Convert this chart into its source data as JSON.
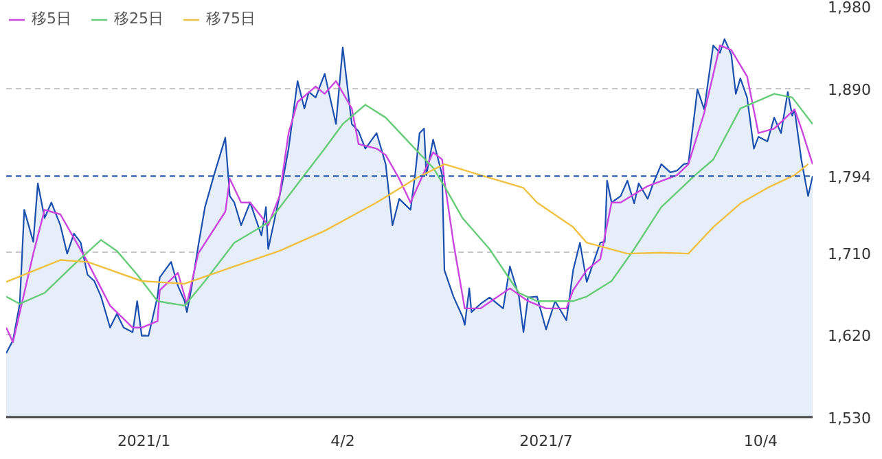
{
  "chart_data": {
    "type": "line",
    "xlim": [
      "2020-11-04",
      "2021-10-27"
    ],
    "ylim": [
      1530,
      1980
    ],
    "xticks": [
      {
        "value": "2021-01-04",
        "label": "2021/1"
      },
      {
        "value": "2021-04-02",
        "label": "4/2"
      },
      {
        "value": "2021-07-01",
        "label": "2021/7"
      },
      {
        "value": "2021-10-04",
        "label": "10/4"
      }
    ],
    "yticks": [
      {
        "value": 1530,
        "label": "1,530"
      },
      {
        "value": 1620,
        "label": "1,620"
      },
      {
        "value": 1710,
        "label": "1,710"
      },
      {
        "value": 1890,
        "label": "1,890"
      },
      {
        "value": 1980,
        "label": "1,980"
      }
    ],
    "grid": "y",
    "legend": "top left",
    "line_style": "solid",
    "ref_lines": [
      {
        "axis": "y",
        "value": 1794,
        "label": "1,794",
        "color": "#1a4fb0",
        "line_style": "dashed"
      }
    ],
    "series": [
      {
        "type": "area",
        "color": "#1a4fb0",
        "x": [
          "2020-11-04",
          "2020-11-07",
          "2020-11-10",
          "2020-11-12",
          "2020-11-16",
          "2020-11-18",
          "2020-11-21",
          "2020-11-24",
          "2020-11-28",
          "2020-12-01",
          "2020-12-04",
          "2020-12-07",
          "2020-12-10",
          "2020-12-13",
          "2020-12-16",
          "2020-12-20",
          "2020-12-23",
          "2020-12-26",
          "2020-12-30",
          "2021-01-01",
          "2021-01-03",
          "2021-01-06",
          "2021-01-10",
          "2021-01-11",
          "2021-01-16",
          "2021-01-19",
          "2021-01-22",
          "2021-01-23",
          "2021-01-25",
          "2021-01-28",
          "2021-01-31",
          "2021-02-04",
          "2021-02-09",
          "2021-02-11",
          "2021-02-13",
          "2021-02-16",
          "2021-02-20",
          "2021-02-25",
          "2021-02-27",
          "2021-02-28",
          "2021-03-05",
          "2021-03-06",
          "2021-03-09",
          "2021-03-13",
          "2021-03-16",
          "2021-03-18",
          "2021-03-21",
          "2021-03-25",
          "2021-03-30",
          "2021-04-02",
          "2021-04-06",
          "2021-04-09",
          "2021-04-12",
          "2021-04-17",
          "2021-04-21",
          "2021-04-24",
          "2021-04-27",
          "2021-05-02",
          "2021-05-04",
          "2021-05-06",
          "2021-05-08",
          "2021-05-09",
          "2021-05-12",
          "2021-05-16",
          "2021-05-17",
          "2021-05-21",
          "2021-05-25",
          "2021-05-26",
          "2021-05-28",
          "2021-05-29",
          "2021-06-02",
          "2021-06-06",
          "2021-06-12",
          "2021-06-15",
          "2021-06-19",
          "2021-06-21",
          "2021-06-23",
          "2021-06-27",
          "2021-07-01",
          "2021-07-05",
          "2021-07-10",
          "2021-07-13",
          "2021-07-16",
          "2021-07-19",
          "2021-07-25",
          "2021-07-27",
          "2021-07-28",
          "2021-07-30",
          "2021-08-03",
          "2021-08-06",
          "2021-08-09",
          "2021-08-11",
          "2021-08-15",
          "2021-08-17",
          "2021-08-21",
          "2021-08-25",
          "2021-08-28",
          "2021-08-31",
          "2021-09-02",
          "2021-09-05",
          "2021-09-06",
          "2021-09-09",
          "2021-09-13",
          "2021-09-16",
          "2021-09-18",
          "2021-09-21",
          "2021-09-23",
          "2021-09-25",
          "2021-09-28",
          "2021-10-01",
          "2021-10-03",
          "2021-10-07",
          "2021-10-10",
          "2021-10-13",
          "2021-10-16",
          "2021-10-18",
          "2021-10-19",
          "2021-10-22",
          "2021-10-25",
          "2021-10-27"
        ],
        "values": [
          1600,
          1614,
          1654,
          1757,
          1722,
          1786,
          1748,
          1765,
          1740,
          1709,
          1731,
          1721,
          1686,
          1679,
          1662,
          1628,
          1643,
          1628,
          1623,
          1657,
          1619,
          1619,
          1662,
          1683,
          1700,
          1674,
          1657,
          1645,
          1671,
          1717,
          1760,
          1795,
          1836,
          1772,
          1765,
          1740,
          1765,
          1729,
          1760,
          1714,
          1772,
          1783,
          1824,
          1898,
          1868,
          1886,
          1880,
          1906,
          1851,
          1935,
          1851,
          1843,
          1824,
          1841,
          1807,
          1740,
          1769,
          1757,
          1795,
          1841,
          1846,
          1795,
          1834,
          1795,
          1691,
          1662,
          1640,
          1631,
          1671,
          1645,
          1654,
          1661,
          1649,
          1695,
          1662,
          1623,
          1661,
          1662,
          1626,
          1657,
          1636,
          1691,
          1721,
          1678,
          1721,
          1722,
          1789,
          1765,
          1772,
          1789,
          1764,
          1786,
          1769,
          1783,
          1807,
          1798,
          1800,
          1807,
          1808,
          1868,
          1889,
          1867,
          1937,
          1929,
          1944,
          1927,
          1884,
          1901,
          1880,
          1824,
          1837,
          1832,
          1858,
          1841,
          1886,
          1860,
          1867,
          1812,
          1772,
          1794
        ]
      },
      {
        "name": "移5日",
        "color": "#cc44e0",
        "x": [
          "2020-11-04",
          "2020-11-07",
          "2020-11-16",
          "2020-11-21",
          "2020-11-28",
          "2020-12-04",
          "2020-12-10",
          "2020-12-20",
          "2020-12-30",
          "2021-01-03",
          "2021-01-10",
          "2021-01-11",
          "2021-01-19",
          "2021-01-23",
          "2021-01-28",
          "2021-02-09",
          "2021-02-11",
          "2021-02-16",
          "2021-02-20",
          "2021-02-28",
          "2021-03-05",
          "2021-03-09",
          "2021-03-13",
          "2021-03-21",
          "2021-03-25",
          "2021-03-30",
          "2021-04-06",
          "2021-04-09",
          "2021-04-17",
          "2021-04-21",
          "2021-04-27",
          "2021-05-02",
          "2021-05-12",
          "2021-05-16",
          "2021-05-17",
          "2021-05-21",
          "2021-05-26",
          "2021-06-02",
          "2021-06-15",
          "2021-06-23",
          "2021-07-01",
          "2021-07-10",
          "2021-07-13",
          "2021-07-19",
          "2021-07-25",
          "2021-07-30",
          "2021-08-03",
          "2021-08-15",
          "2021-08-28",
          "2021-09-02",
          "2021-09-09",
          "2021-09-16",
          "2021-09-21",
          "2021-09-28",
          "2021-10-03",
          "2021-10-10",
          "2021-10-19",
          "2021-10-22",
          "2021-10-27"
        ],
        "values": [
          1628,
          1612,
          1709,
          1757,
          1752,
          1726,
          1700,
          1652,
          1628,
          1628,
          1635,
          1669,
          1688,
          1654,
          1709,
          1755,
          1791,
          1765,
          1765,
          1740,
          1772,
          1841,
          1875,
          1892,
          1884,
          1898,
          1868,
          1829,
          1824,
          1817,
          1791,
          1765,
          1820,
          1812,
          1789,
          1721,
          1649,
          1649,
          1671,
          1657,
          1649,
          1649,
          1669,
          1691,
          1703,
          1765,
          1765,
          1783,
          1795,
          1807,
          1863,
          1937,
          1932,
          1903,
          1841,
          1846,
          1867,
          1846,
          1807
        ]
      },
      {
        "name": "移25日",
        "color": "#66cc77",
        "x": [
          "2020-11-04",
          "2020-11-10",
          "2020-11-21",
          "2020-12-04",
          "2020-12-16",
          "2020-12-23",
          "2021-01-01",
          "2021-01-10",
          "2021-01-22",
          "2021-01-31",
          "2021-02-13",
          "2021-02-28",
          "2021-03-16",
          "2021-03-25",
          "2021-04-02",
          "2021-04-12",
          "2021-04-21",
          "2021-05-02",
          "2021-05-12",
          "2021-05-17",
          "2021-05-25",
          "2021-06-06",
          "2021-06-19",
          "2021-06-27",
          "2021-07-13",
          "2021-07-19",
          "2021-07-30",
          "2021-08-09",
          "2021-08-21",
          "2021-09-05",
          "2021-09-13",
          "2021-09-25",
          "2021-10-10",
          "2021-10-18",
          "2021-10-27"
        ],
        "values": [
          1662,
          1654,
          1666,
          1697,
          1724,
          1712,
          1686,
          1657,
          1652,
          1679,
          1721,
          1743,
          1795,
          1824,
          1851,
          1872,
          1858,
          1829,
          1803,
          1783,
          1748,
          1714,
          1666,
          1657,
          1657,
          1662,
          1679,
          1714,
          1760,
          1795,
          1812,
          1868,
          1884,
          1880,
          1851
        ]
      },
      {
        "name": "移75日",
        "color": "#f0c040",
        "x": [
          "2020-11-04",
          "2020-11-12",
          "2020-11-28",
          "2020-12-10",
          "2021-01-03",
          "2021-01-22",
          "2021-02-13",
          "2021-03-05",
          "2021-03-25",
          "2021-04-17",
          "2021-05-04",
          "2021-05-17",
          "2021-06-02",
          "2021-06-21",
          "2021-06-27",
          "2021-07-13",
          "2021-07-19",
          "2021-08-06",
          "2021-08-21",
          "2021-09-02",
          "2021-09-13",
          "2021-09-25",
          "2021-10-07",
          "2021-10-19",
          "2021-10-25"
        ],
        "values": [
          1678,
          1686,
          1702,
          1700,
          1679,
          1676,
          1695,
          1712,
          1734,
          1765,
          1791,
          1807,
          1795,
          1781,
          1765,
          1738,
          1721,
          1709,
          1710,
          1709,
          1738,
          1764,
          1781,
          1795,
          1807
        ]
      }
    ]
  }
}
